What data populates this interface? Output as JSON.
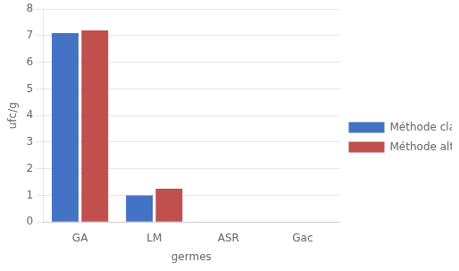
{
  "chart_data": {
    "type": "bar",
    "categories": [
      "GA",
      "LM",
      "ASR",
      "Gac"
    ],
    "series": [
      {
        "name": "Méthode classique",
        "color": "#4472C4",
        "values": [
          7.1,
          1.0,
          0,
          0
        ]
      },
      {
        "name": "Méthode alternative",
        "color": "#C0504D",
        "values": [
          7.2,
          1.25,
          0,
          0
        ]
      }
    ],
    "xlabel": "germes",
    "ylabel": "ufc/g",
    "ylim": [
      0,
      8
    ],
    "yticks": [
      0,
      1,
      2,
      3,
      4,
      5,
      6,
      7,
      8
    ],
    "grid": "y",
    "legend": "right"
  }
}
